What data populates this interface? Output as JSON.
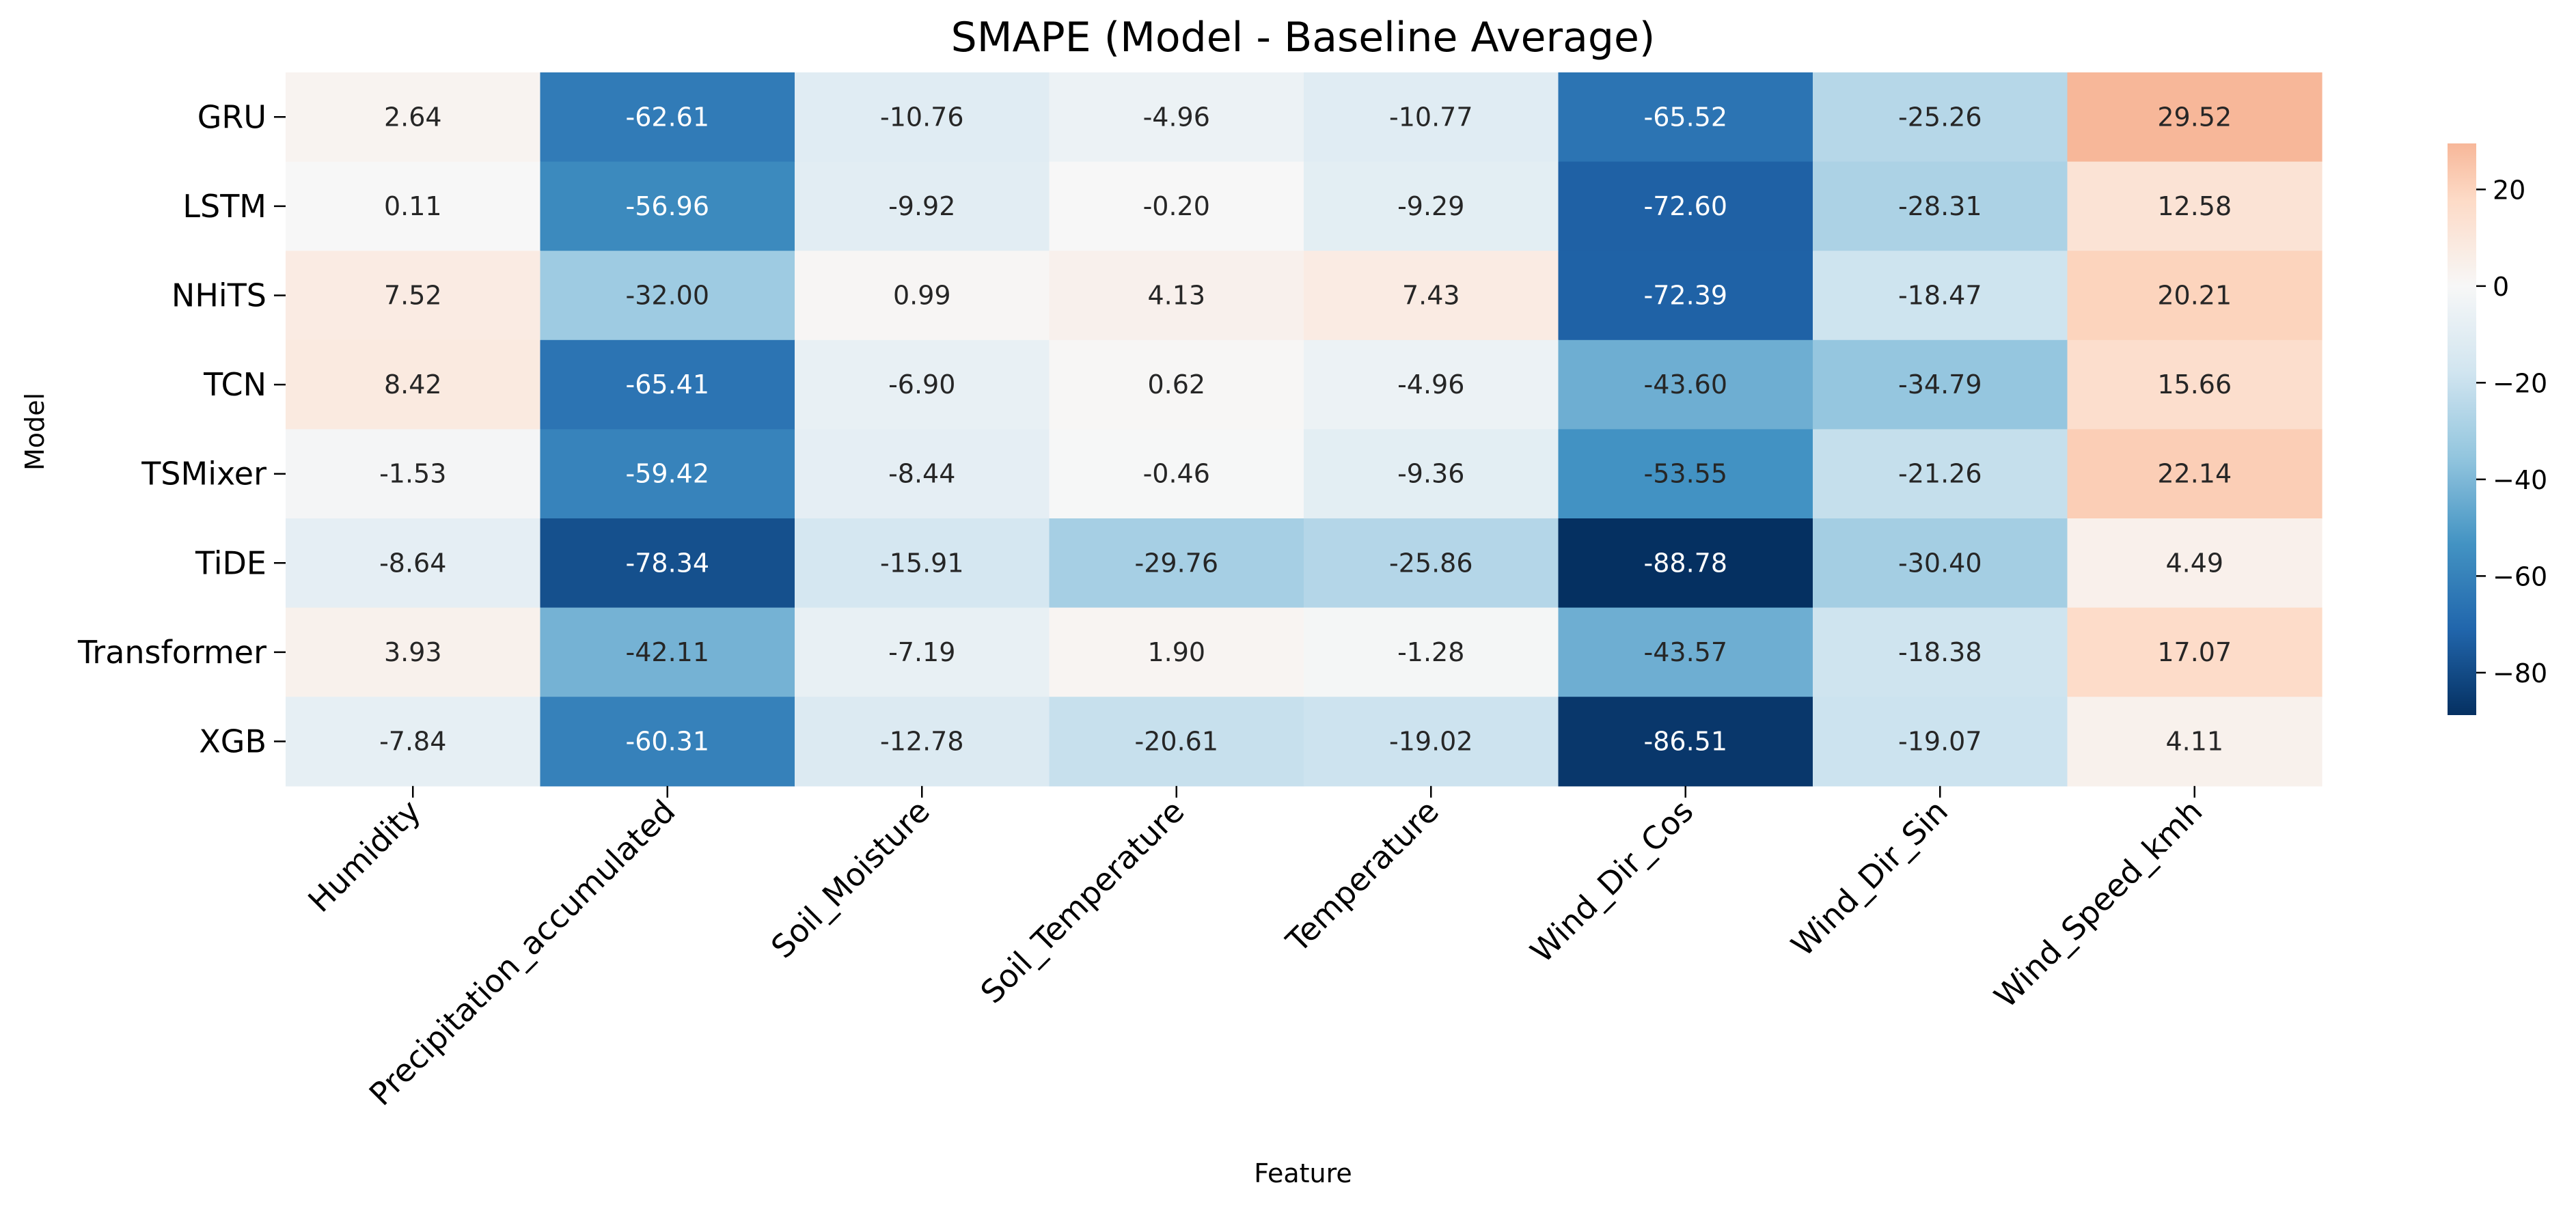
{
  "chart_data": {
    "type": "heatmap",
    "title": "SMAPE (Model - Baseline Average)",
    "xlabel": "Feature",
    "ylabel": "Model",
    "rows": [
      "GRU",
      "LSTM",
      "NHiTS",
      "TCN",
      "TSMixer",
      "TiDE",
      "Transformer",
      "XGB"
    ],
    "columns": [
      "Humidity",
      "Precipitation_accumulated",
      "Soil_Moisture",
      "Soil_Temperature",
      "Temperature",
      "Wind_Dir_Cos",
      "Wind_Dir_Sin",
      "Wind_Speed_kmh"
    ],
    "values": [
      [
        2.64,
        -62.61,
        -10.76,
        -4.96,
        -10.77,
        -65.52,
        -25.26,
        29.52
      ],
      [
        0.11,
        -56.96,
        -9.92,
        -0.2,
        -9.29,
        -72.6,
        -28.31,
        12.58
      ],
      [
        7.52,
        -32.0,
        0.99,
        4.13,
        7.43,
        -72.39,
        -18.47,
        20.21
      ],
      [
        8.42,
        -65.41,
        -6.9,
        0.62,
        -4.96,
        -43.6,
        -34.79,
        15.66
      ],
      [
        -1.53,
        -59.42,
        -8.44,
        -0.46,
        -9.36,
        -53.55,
        -21.26,
        22.14
      ],
      [
        -8.64,
        -78.34,
        -15.91,
        -29.76,
        -25.86,
        -88.78,
        -30.4,
        4.49
      ],
      [
        3.93,
        -42.11,
        -7.19,
        1.9,
        -1.28,
        -43.57,
        -18.38,
        17.07
      ],
      [
        -7.84,
        -60.31,
        -12.78,
        -20.61,
        -19.02,
        -86.51,
        -19.07,
        4.11
      ]
    ],
    "labels": [
      [
        "2.64",
        "-62.61",
        "-10.76",
        "-4.96",
        "-10.77",
        "-65.52",
        "-25.26",
        "29.52"
      ],
      [
        "0.11",
        "-56.96",
        "-9.92",
        "-0.20",
        "-9.29",
        "-72.60",
        "-28.31",
        "12.58"
      ],
      [
        "7.52",
        "-32.00",
        "0.99",
        "4.13",
        "7.43",
        "-72.39",
        "-18.47",
        "20.21"
      ],
      [
        "8.42",
        "-65.41",
        "-6.90",
        "0.62",
        "-4.96",
        "-43.60",
        "-34.79",
        "15.66"
      ],
      [
        "-1.53",
        "-59.42",
        "-8.44",
        "-0.46",
        "-9.36",
        "-53.55",
        "-21.26",
        "22.14"
      ],
      [
        "-8.64",
        "-78.34",
        "-15.91",
        "-29.76",
        "-25.86",
        "-88.78",
        "-30.40",
        "4.49"
      ],
      [
        "3.93",
        "-42.11",
        "-7.19",
        "1.90",
        "-1.28",
        "-43.57",
        "-18.38",
        "17.07"
      ],
      [
        "-7.84",
        "-60.31",
        "-12.78",
        "-20.61",
        "-19.02",
        "-86.51",
        "-19.07",
        "4.11"
      ]
    ],
    "colormap": "RdBu_r",
    "center": 0,
    "vlim": [
      -88.78,
      29.52
    ],
    "colorbar": {
      "ticks": [
        20,
        0,
        -20,
        -40,
        -60,
        -80
      ],
      "tick_labels": [
        "20",
        "0",
        "−20",
        "−40",
        "−60",
        "−80"
      ],
      "placement": "right"
    },
    "grid": false,
    "legend": "colorbar-right"
  }
}
